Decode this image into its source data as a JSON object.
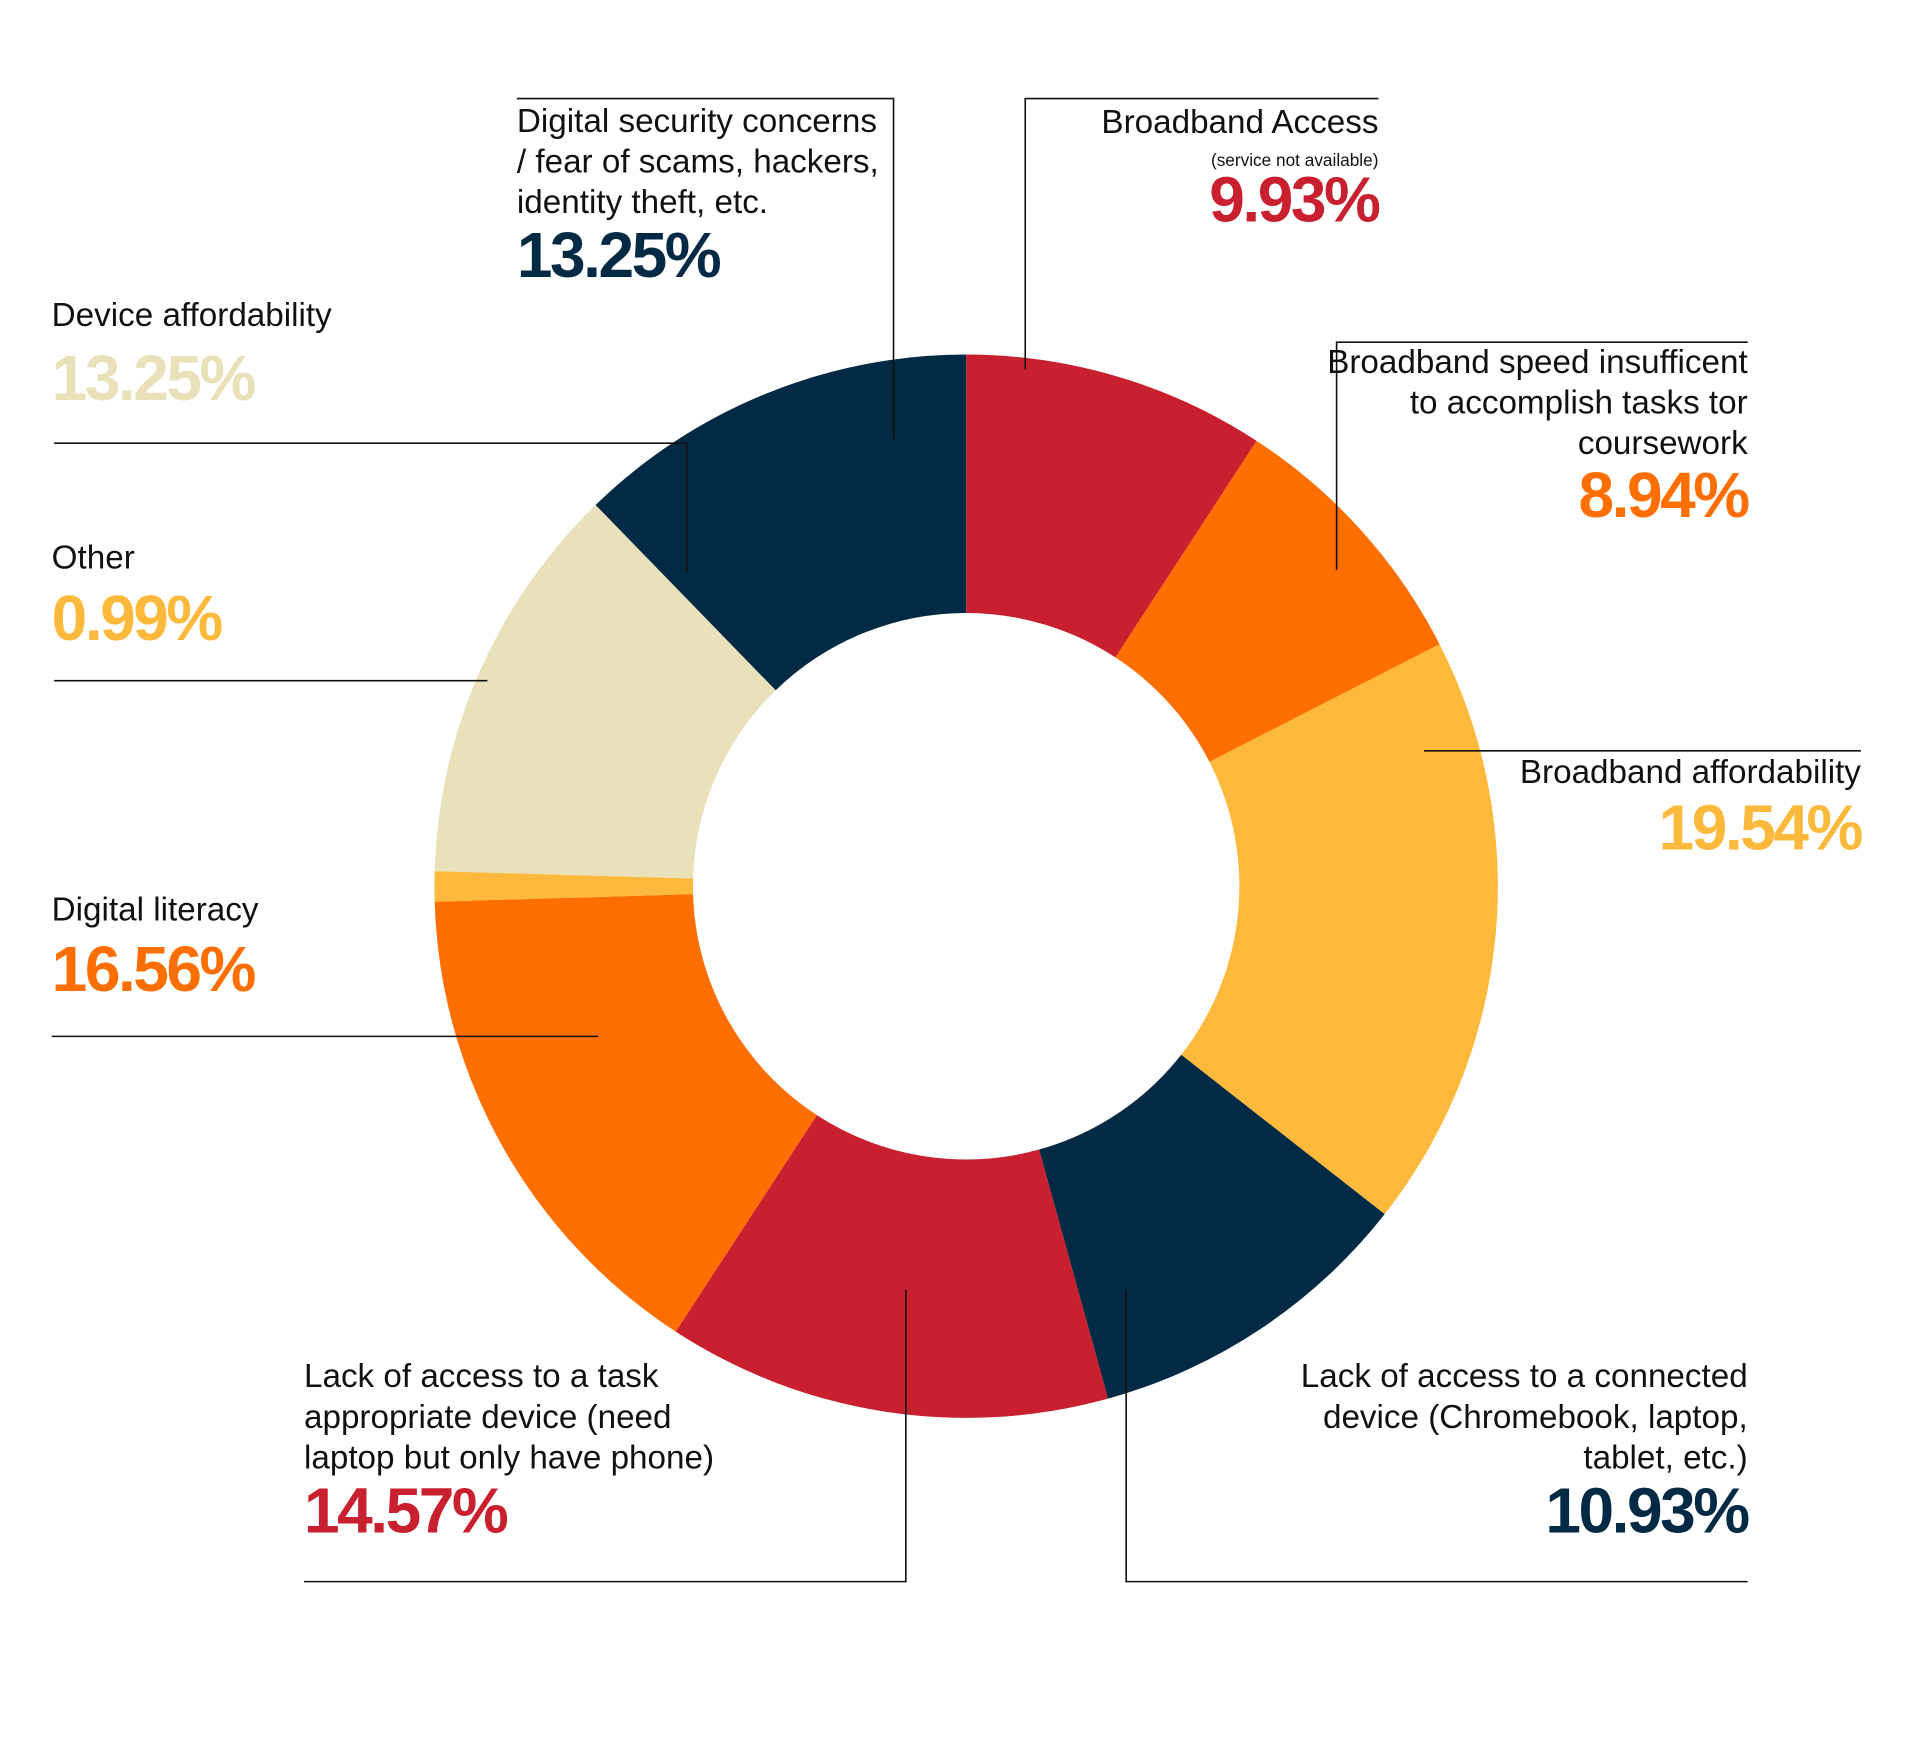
{
  "chart_data": {
    "type": "donut",
    "categories": [
      "Broadband Access",
      "Broadband speed insufficent\nto accomplish tasks tor\ncoursework",
      "Broadband affordability",
      "Lack of access to a connected\ndevice (Chromebook, laptop,\ntablet, etc.)",
      "Lack of access to a task\nappropriate device (need\nlaptop but only have phone)",
      "Digital literacy",
      "Other",
      "Device affordability",
      "Digital security concerns\n/ fear of scams, hackers,\nidentity theft, etc."
    ],
    "category_notes": [
      "(service not available)",
      null,
      null,
      null,
      null,
      null,
      null,
      null,
      null
    ],
    "values": [
      9.93,
      8.94,
      19.54,
      10.93,
      14.57,
      16.56,
      0.99,
      13.25,
      13.25
    ],
    "value_labels": [
      "9.93%",
      "8.94%",
      "19.54%",
      "10.93%",
      "14.57%",
      "16.56%",
      "0.99%",
      "13.25%",
      "13.25%"
    ],
    "colors": [
      "#c8202f",
      "#ff6e00",
      "#fdb93c",
      "#032a45",
      "#c8202f",
      "#ff6e00",
      "#fdb93c",
      "#e8e1b9",
      "#032a45"
    ]
  }
}
